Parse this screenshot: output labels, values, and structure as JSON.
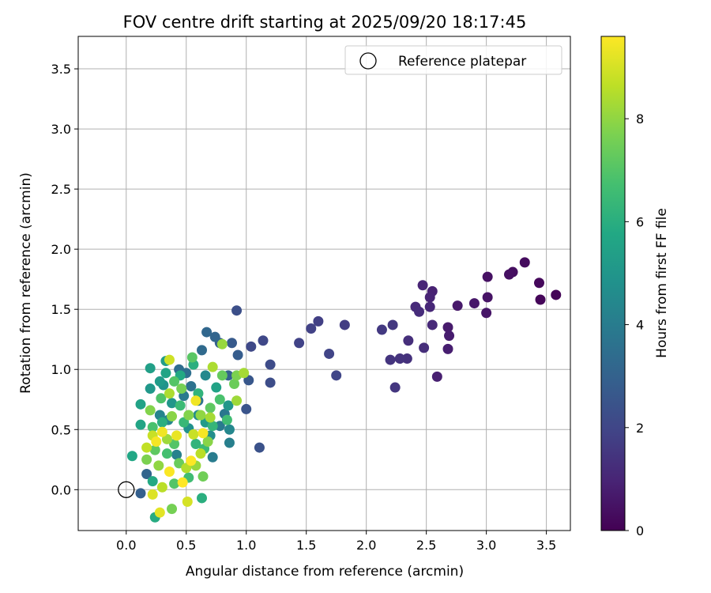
{
  "chart_data": {
    "type": "scatter",
    "title": "FOV centre drift starting at 2025/09/20 18:17:45",
    "xlabel": "Angular distance from reference (arcmin)",
    "ylabel": "Rotation from reference (arcmin)",
    "xlim": [
      -0.4,
      3.7
    ],
    "ylim": [
      -0.34,
      3.77
    ],
    "xticks": [
      0.0,
      0.5,
      1.0,
      1.5,
      2.0,
      2.5,
      3.0,
      3.5
    ],
    "yticks": [
      0.0,
      0.5,
      1.0,
      1.5,
      2.0,
      2.5,
      3.0,
      3.5
    ],
    "xtick_labels": [
      "0.0",
      "0.5",
      "1.0",
      "1.5",
      "2.0",
      "2.5",
      "3.0",
      "3.5"
    ],
    "ytick_labels": [
      "0.0",
      "0.5",
      "1.0",
      "1.5",
      "2.0",
      "2.5",
      "3.0",
      "3.5"
    ],
    "grid": true,
    "legend": {
      "placement": "top-right",
      "entries": [
        {
          "label": "Reference platepar",
          "marker": "open-circle",
          "x": 0.0,
          "y": 0.0
        }
      ]
    },
    "colorbar": {
      "label": "Hours from first FF file",
      "min": 0,
      "max": 9.6,
      "ticks": [
        0,
        2,
        4,
        6,
        8
      ],
      "tick_labels": [
        "0",
        "2",
        "4",
        "6",
        "8"
      ],
      "colormap": "viridis"
    },
    "points": [
      {
        "x": 3.58,
        "y": 1.62,
        "c": 0.1
      },
      {
        "x": 3.45,
        "y": 1.58,
        "c": 0.15
      },
      {
        "x": 3.44,
        "y": 1.72,
        "c": 0.2
      },
      {
        "x": 3.32,
        "y": 1.89,
        "c": 0.3
      },
      {
        "x": 3.22,
        "y": 1.81,
        "c": 0.35
      },
      {
        "x": 3.19,
        "y": 1.79,
        "c": 0.4
      },
      {
        "x": 3.01,
        "y": 1.77,
        "c": 0.45
      },
      {
        "x": 3.01,
        "y": 1.6,
        "c": 0.5
      },
      {
        "x": 3.0,
        "y": 1.47,
        "c": 0.55
      },
      {
        "x": 2.9,
        "y": 1.55,
        "c": 0.6
      },
      {
        "x": 2.76,
        "y": 1.53,
        "c": 0.65
      },
      {
        "x": 2.68,
        "y": 1.35,
        "c": 0.7
      },
      {
        "x": 2.69,
        "y": 1.28,
        "c": 0.75
      },
      {
        "x": 2.68,
        "y": 1.17,
        "c": 0.8
      },
      {
        "x": 2.59,
        "y": 0.94,
        "c": 0.85
      },
      {
        "x": 2.55,
        "y": 1.65,
        "c": 0.9
      },
      {
        "x": 2.53,
        "y": 1.6,
        "c": 0.95
      },
      {
        "x": 2.47,
        "y": 1.7,
        "c": 1.0
      },
      {
        "x": 2.53,
        "y": 1.52,
        "c": 1.05
      },
      {
        "x": 2.55,
        "y": 1.37,
        "c": 1.1
      },
      {
        "x": 2.41,
        "y": 1.52,
        "c": 1.15
      },
      {
        "x": 2.44,
        "y": 1.48,
        "c": 1.2
      },
      {
        "x": 2.48,
        "y": 1.18,
        "c": 1.25
      },
      {
        "x": 2.35,
        "y": 1.24,
        "c": 1.3
      },
      {
        "x": 2.34,
        "y": 1.09,
        "c": 1.35
      },
      {
        "x": 2.28,
        "y": 1.09,
        "c": 1.4
      },
      {
        "x": 2.2,
        "y": 1.08,
        "c": 1.45
      },
      {
        "x": 2.24,
        "y": 0.85,
        "c": 1.5
      },
      {
        "x": 2.22,
        "y": 1.37,
        "c": 1.55
      },
      {
        "x": 2.13,
        "y": 1.33,
        "c": 1.6
      },
      {
        "x": 1.82,
        "y": 1.37,
        "c": 1.7
      },
      {
        "x": 1.6,
        "y": 1.4,
        "c": 1.8
      },
      {
        "x": 1.54,
        "y": 1.34,
        "c": 1.85
      },
      {
        "x": 1.44,
        "y": 1.22,
        "c": 1.9
      },
      {
        "x": 1.69,
        "y": 1.13,
        "c": 1.95
      },
      {
        "x": 1.75,
        "y": 0.95,
        "c": 2.0
      },
      {
        "x": 1.14,
        "y": 1.24,
        "c": 2.05
      },
      {
        "x": 1.04,
        "y": 1.19,
        "c": 2.1
      },
      {
        "x": 1.2,
        "y": 1.04,
        "c": 2.2
      },
      {
        "x": 1.2,
        "y": 0.89,
        "c": 2.25
      },
      {
        "x": 0.92,
        "y": 1.49,
        "c": 2.3
      },
      {
        "x": 1.11,
        "y": 0.35,
        "c": 2.4
      },
      {
        "x": 1.0,
        "y": 0.67,
        "c": 2.5
      },
      {
        "x": 1.02,
        "y": 0.91,
        "c": 2.6
      },
      {
        "x": 0.88,
        "y": 1.22,
        "c": 2.7
      },
      {
        "x": 0.93,
        "y": 1.12,
        "c": 2.8
      },
      {
        "x": 0.78,
        "y": 1.22,
        "c": 2.9
      },
      {
        "x": 0.85,
        "y": 0.95,
        "c": 3.0
      },
      {
        "x": 0.74,
        "y": 1.27,
        "c": 3.1
      },
      {
        "x": 0.67,
        "y": 1.31,
        "c": 3.2
      },
      {
        "x": 0.63,
        "y": 1.16,
        "c": 3.3
      },
      {
        "x": 0.12,
        "y": -0.03,
        "c": 2.9
      },
      {
        "x": 0.17,
        "y": 0.13,
        "c": 3.1
      },
      {
        "x": 0.44,
        "y": 1.0,
        "c": 3.4
      },
      {
        "x": 0.5,
        "y": 0.97,
        "c": 3.5
      },
      {
        "x": 0.54,
        "y": 0.86,
        "c": 3.6
      },
      {
        "x": 0.6,
        "y": 0.74,
        "c": 3.7
      },
      {
        "x": 0.82,
        "y": 0.63,
        "c": 3.8
      },
      {
        "x": 0.78,
        "y": 0.53,
        "c": 3.9
      },
      {
        "x": 0.72,
        "y": 0.27,
        "c": 4.0
      },
      {
        "x": 0.86,
        "y": 0.39,
        "c": 4.1
      },
      {
        "x": 0.42,
        "y": 0.29,
        "c": 4.2
      },
      {
        "x": 0.28,
        "y": 0.62,
        "c": 4.3
      },
      {
        "x": 0.35,
        "y": 0.58,
        "c": 4.4
      },
      {
        "x": 0.66,
        "y": 0.95,
        "c": 4.5
      },
      {
        "x": 0.6,
        "y": 0.62,
        "c": 4.6
      },
      {
        "x": 0.7,
        "y": 0.45,
        "c": 4.7
      },
      {
        "x": 0.52,
        "y": 0.51,
        "c": 4.8
      },
      {
        "x": 0.31,
        "y": 0.87,
        "c": 4.9
      },
      {
        "x": 0.38,
        "y": 0.72,
        "c": 5.0
      },
      {
        "x": 0.2,
        "y": 0.84,
        "c": 5.1
      },
      {
        "x": 0.28,
        "y": 0.9,
        "c": 5.2
      },
      {
        "x": 0.33,
        "y": 1.07,
        "c": 5.3
      },
      {
        "x": 0.2,
        "y": 1.01,
        "c": 5.4
      },
      {
        "x": 0.12,
        "y": 0.71,
        "c": 5.5
      },
      {
        "x": 0.12,
        "y": 0.54,
        "c": 5.6
      },
      {
        "x": 0.05,
        "y": 0.28,
        "c": 5.7
      },
      {
        "x": 0.22,
        "y": 0.07,
        "c": 5.8
      },
      {
        "x": 0.24,
        "y": -0.23,
        "c": 5.9
      },
      {
        "x": 0.63,
        "y": -0.07,
        "c": 6.0
      },
      {
        "x": 0.33,
        "y": 0.97,
        "c": 5.6
      },
      {
        "x": 0.45,
        "y": 0.95,
        "c": 5.8
      },
      {
        "x": 0.56,
        "y": 1.04,
        "c": 6.0
      },
      {
        "x": 0.58,
        "y": 0.38,
        "c": 6.2
      },
      {
        "x": 0.72,
        "y": 0.53,
        "c": 6.3
      },
      {
        "x": 0.48,
        "y": 0.56,
        "c": 6.4
      },
      {
        "x": 0.65,
        "y": 0.34,
        "c": 6.5
      },
      {
        "x": 0.52,
        "y": 0.1,
        "c": 6.6
      },
      {
        "x": 0.34,
        "y": 0.3,
        "c": 6.7
      },
      {
        "x": 0.22,
        "y": 0.52,
        "c": 6.8
      },
      {
        "x": 0.29,
        "y": 0.76,
        "c": 6.9
      },
      {
        "x": 0.4,
        "y": 0.9,
        "c": 7.0
      },
      {
        "x": 0.55,
        "y": 1.1,
        "c": 7.1
      },
      {
        "x": 0.7,
        "y": 0.68,
        "c": 7.2
      },
      {
        "x": 0.8,
        "y": 0.95,
        "c": 7.3
      },
      {
        "x": 0.9,
        "y": 0.88,
        "c": 7.4
      },
      {
        "x": 0.64,
        "y": 0.11,
        "c": 7.5
      },
      {
        "x": 0.38,
        "y": -0.16,
        "c": 7.6
      },
      {
        "x": 0.17,
        "y": 0.25,
        "c": 7.7
      },
      {
        "x": 0.2,
        "y": 0.66,
        "c": 7.8
      },
      {
        "x": 0.38,
        "y": 0.61,
        "c": 7.9
      },
      {
        "x": 0.62,
        "y": 0.62,
        "c": 8.0
      },
      {
        "x": 0.8,
        "y": 1.21,
        "c": 8.1
      },
      {
        "x": 0.92,
        "y": 0.74,
        "c": 8.2
      },
      {
        "x": 0.98,
        "y": 0.97,
        "c": 8.3
      },
      {
        "x": 0.72,
        "y": 1.02,
        "c": 8.4
      },
      {
        "x": 0.5,
        "y": 0.18,
        "c": 8.5
      },
      {
        "x": 0.3,
        "y": 0.02,
        "c": 8.6
      },
      {
        "x": 0.17,
        "y": 0.35,
        "c": 8.7
      },
      {
        "x": 0.22,
        "y": 0.45,
        "c": 8.8
      },
      {
        "x": 0.36,
        "y": 1.08,
        "c": 8.9
      },
      {
        "x": 0.51,
        "y": -0.1,
        "c": 9.0
      },
      {
        "x": 0.22,
        "y": -0.04,
        "c": 9.1
      },
      {
        "x": 0.28,
        "y": -0.19,
        "c": 9.2
      },
      {
        "x": 0.42,
        "y": 0.45,
        "c": 9.3
      },
      {
        "x": 0.58,
        "y": 0.74,
        "c": 9.4
      },
      {
        "x": 0.64,
        "y": 0.47,
        "c": 9.5
      },
      {
        "x": 0.36,
        "y": 0.15,
        "c": 9.55
      },
      {
        "x": 0.54,
        "y": 0.24,
        "c": 9.6
      },
      {
        "x": 0.47,
        "y": 0.06,
        "c": 9.6
      },
      {
        "x": 0.25,
        "y": 0.4,
        "c": 9.5
      },
      {
        "x": 0.3,
        "y": 0.48,
        "c": 9.4
      },
      {
        "x": 0.45,
        "y": 0.7,
        "c": 6.5
      },
      {
        "x": 0.6,
        "y": 0.8,
        "c": 6.2
      },
      {
        "x": 0.75,
        "y": 0.85,
        "c": 5.5
      },
      {
        "x": 0.85,
        "y": 0.7,
        "c": 5.0
      },
      {
        "x": 0.4,
        "y": 0.38,
        "c": 7.0
      },
      {
        "x": 0.52,
        "y": 0.62,
        "c": 7.8
      },
      {
        "x": 0.7,
        "y": 0.6,
        "c": 8.3
      },
      {
        "x": 0.56,
        "y": 0.46,
        "c": 8.8
      },
      {
        "x": 0.34,
        "y": 0.42,
        "c": 8.2
      },
      {
        "x": 0.44,
        "y": 0.22,
        "c": 7.4
      },
      {
        "x": 0.27,
        "y": 0.2,
        "c": 8.0
      },
      {
        "x": 0.68,
        "y": 0.4,
        "c": 7.9
      },
      {
        "x": 0.62,
        "y": 0.3,
        "c": 8.6
      },
      {
        "x": 0.46,
        "y": 0.84,
        "c": 7.6
      },
      {
        "x": 0.78,
        "y": 0.75,
        "c": 6.8
      },
      {
        "x": 0.86,
        "y": 0.5,
        "c": 4.4
      },
      {
        "x": 0.48,
        "y": 0.78,
        "c": 3.9
      },
      {
        "x": 0.66,
        "y": 0.56,
        "c": 5.2
      },
      {
        "x": 0.3,
        "y": 0.56,
        "c": 6.0
      },
      {
        "x": 0.24,
        "y": 0.33,
        "c": 7.2
      },
      {
        "x": 0.4,
        "y": 0.05,
        "c": 7.0
      },
      {
        "x": 0.58,
        "y": 0.2,
        "c": 8.1
      },
      {
        "x": 0.36,
        "y": 0.8,
        "c": 8.4
      },
      {
        "x": 0.92,
        "y": 0.95,
        "c": 7.7
      },
      {
        "x": 0.84,
        "y": 0.58,
        "c": 6.6
      }
    ]
  }
}
